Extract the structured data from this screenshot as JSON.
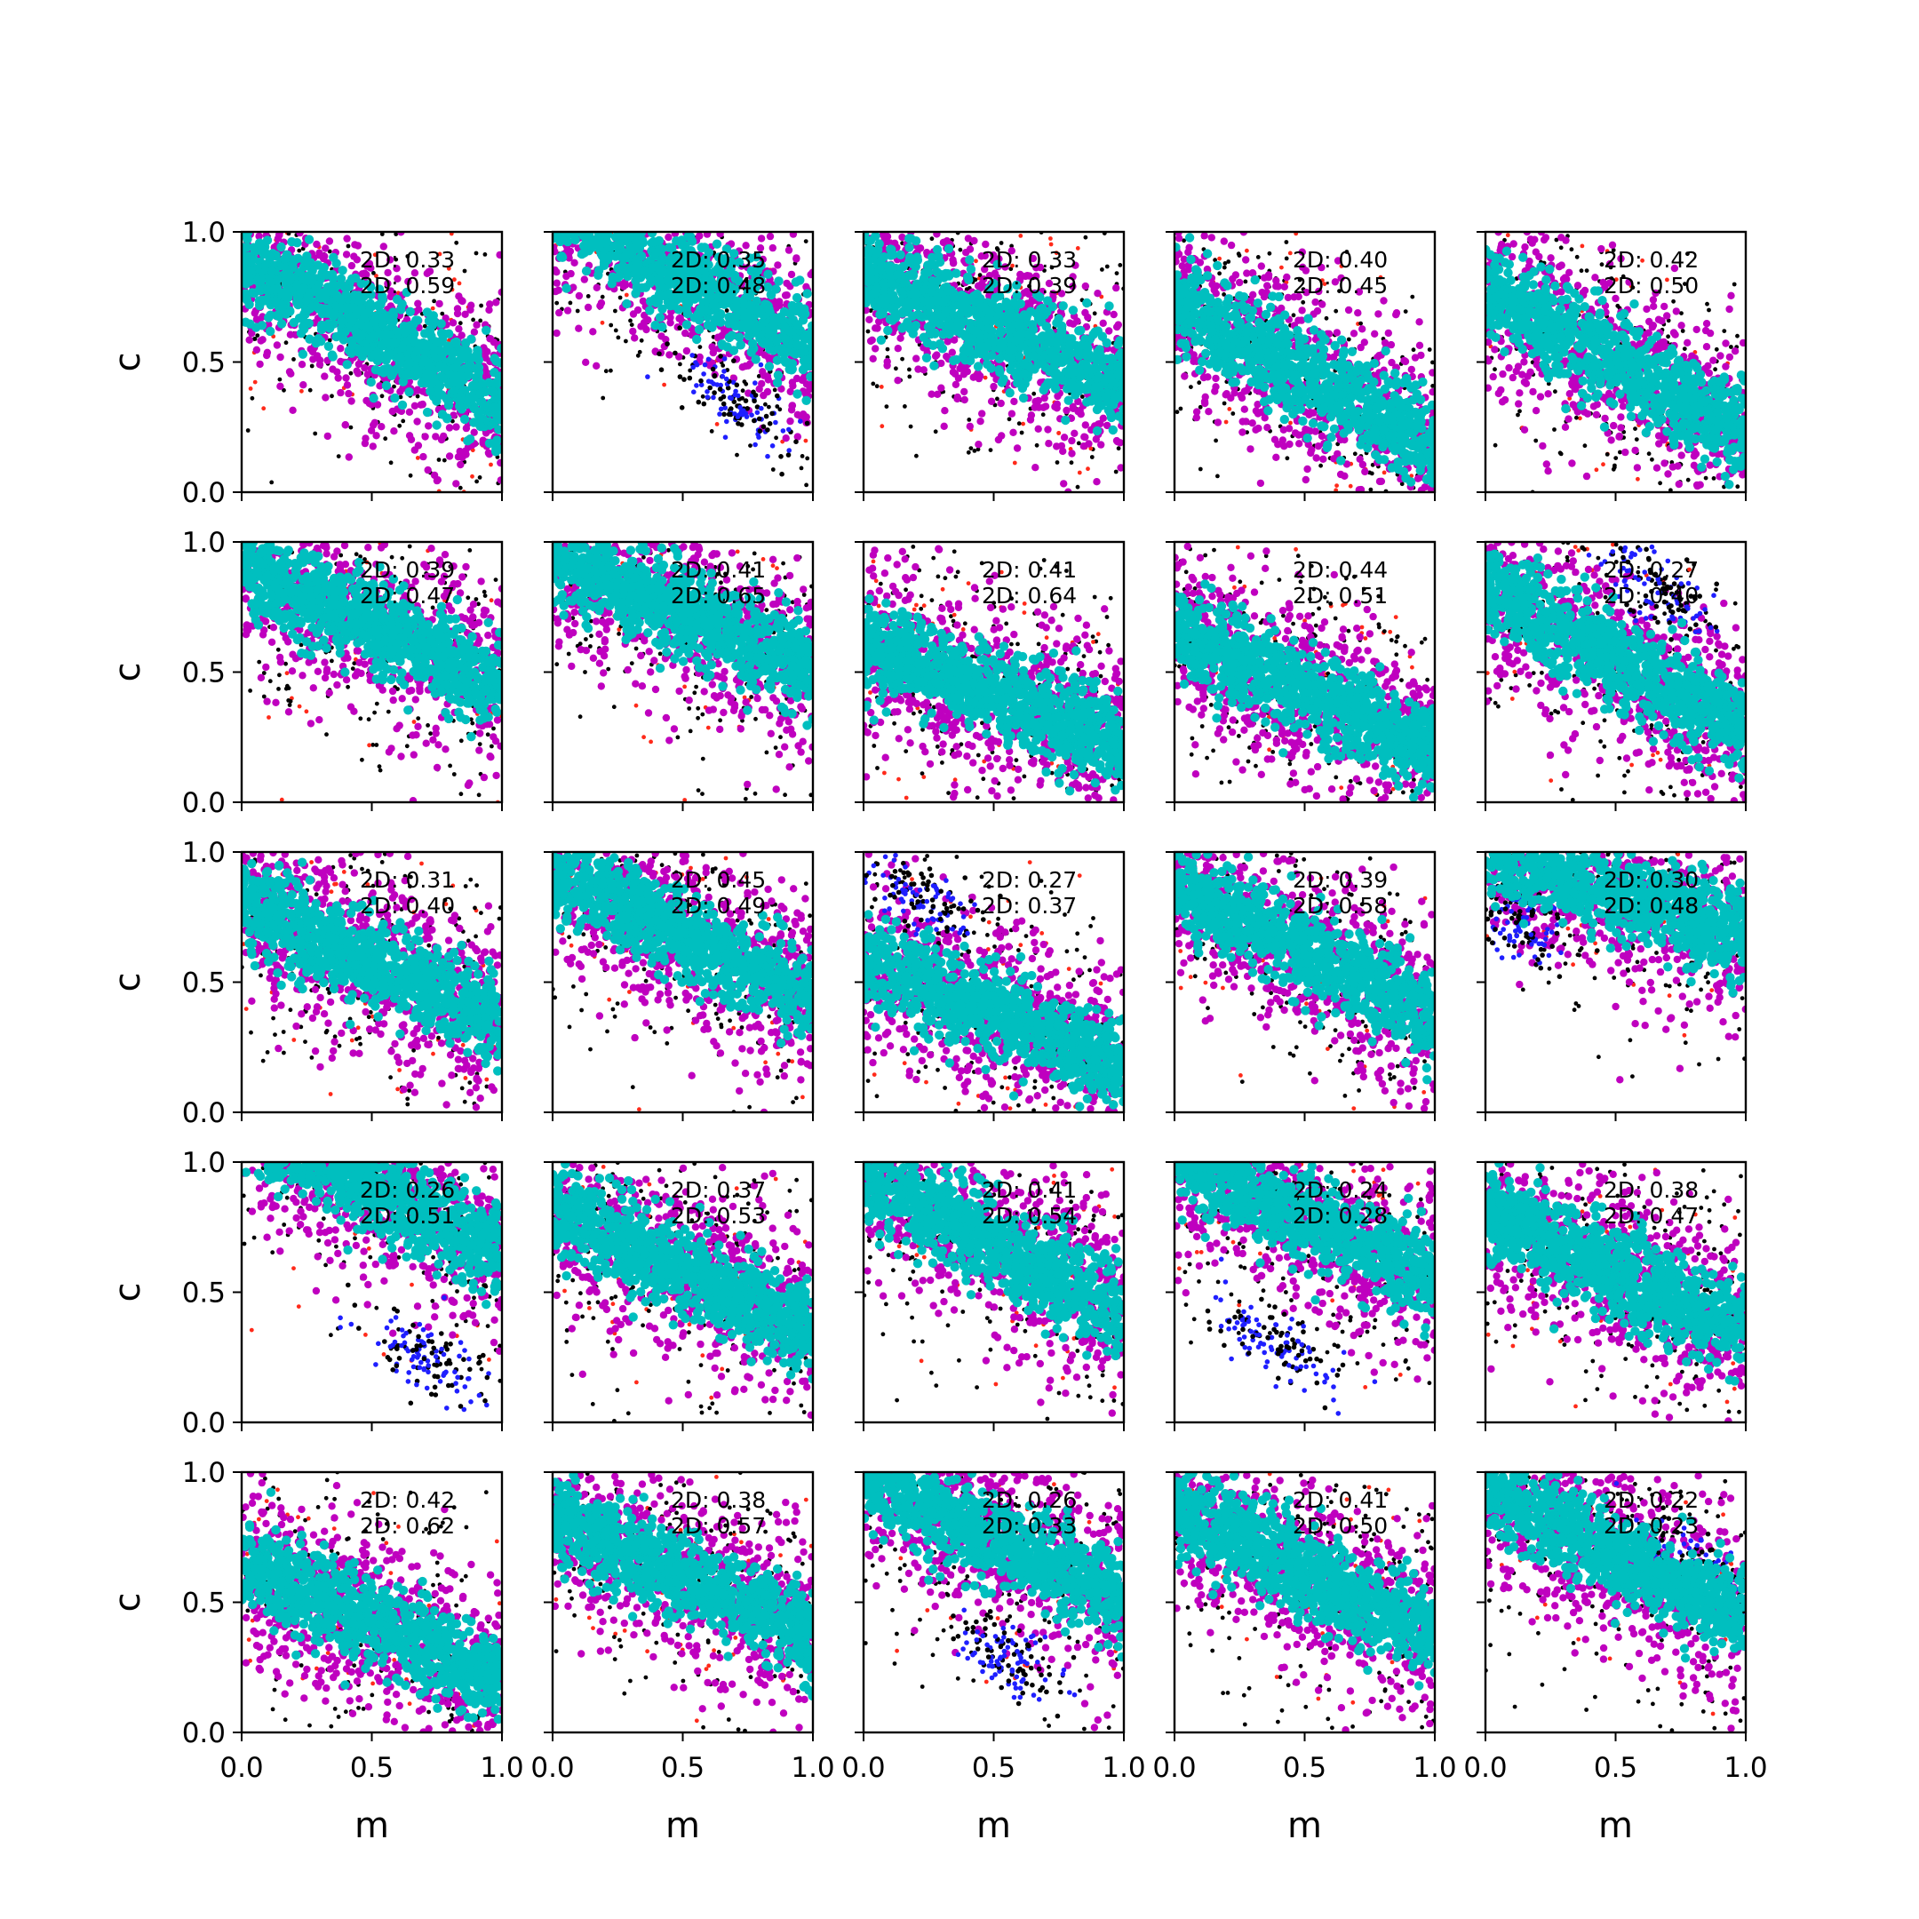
{
  "figure": {
    "type": "scatter",
    "rows": 5,
    "cols": 5,
    "xlabel": "m",
    "ylabel": "c",
    "xlim": [
      0.0,
      1.0
    ],
    "ylim": [
      0.0,
      1.0
    ],
    "x_tick_labels": [
      "0.0",
      "0.5",
      "1.0"
    ],
    "y_tick_labels": [
      "0.0",
      "0.5",
      "1.0"
    ],
    "point_colors": {
      "black": "#000000",
      "red": "#ff2a1a",
      "blue": "#1f1fff",
      "magenta": "#bf00bf",
      "cyan": "#00bfbf"
    }
  },
  "chart_data": [
    {
      "type": "scatter",
      "row": 1,
      "col": 1,
      "annotation": [
        "2D: 0.33",
        "2D: 0.59"
      ],
      "band_center": 0.62,
      "band_slope": -0.55,
      "blue_cluster": null
    },
    {
      "type": "scatter",
      "row": 1,
      "col": 2,
      "annotation": [
        "2D: 0.35",
        "2D: 0.48"
      ],
      "band_center": 0.83,
      "band_slope": -0.55,
      "blue_cluster": [
        0.72,
        0.35
      ]
    },
    {
      "type": "scatter",
      "row": 1,
      "col": 3,
      "annotation": [
        "2D: 0.33",
        "2D: 0.39"
      ],
      "band_center": 0.63,
      "band_slope": -0.45,
      "blue_cluster": null
    },
    {
      "type": "scatter",
      "row": 1,
      "col": 4,
      "annotation": [
        "2D: 0.40",
        "2D: 0.45"
      ],
      "band_center": 0.45,
      "band_slope": -0.55,
      "blue_cluster": null
    },
    {
      "type": "scatter",
      "row": 1,
      "col": 5,
      "annotation": [
        "2D: 0.42",
        "2D: 0.50"
      ],
      "band_center": 0.5,
      "band_slope": -0.55,
      "blue_cluster": null
    },
    {
      "type": "scatter",
      "row": 2,
      "col": 1,
      "annotation": [
        "2D: 0.39",
        "2D: 0.47"
      ],
      "band_center": 0.68,
      "band_slope": -0.45,
      "blue_cluster": null
    },
    {
      "type": "scatter",
      "row": 2,
      "col": 2,
      "annotation": [
        "2D: 0.41",
        "2D: 0.65"
      ],
      "band_center": 0.73,
      "band_slope": -0.45,
      "blue_cluster": null
    },
    {
      "type": "scatter",
      "row": 2,
      "col": 3,
      "annotation": [
        "2D: 0.41",
        "2D: 0.64"
      ],
      "band_center": 0.42,
      "band_slope": -0.4,
      "blue_cluster": null
    },
    {
      "type": "scatter",
      "row": 2,
      "col": 4,
      "annotation": [
        "2D: 0.44",
        "2D: 0.51"
      ],
      "band_center": 0.43,
      "band_slope": -0.45,
      "blue_cluster": null
    },
    {
      "type": "scatter",
      "row": 2,
      "col": 5,
      "annotation": [
        "2D: 0.27",
        "2D: 0.40"
      ],
      "band_center": 0.55,
      "band_slope": -0.55,
      "blue_cluster": [
        0.65,
        0.82
      ]
    },
    {
      "type": "scatter",
      "row": 3,
      "col": 1,
      "annotation": [
        "2D: 0.31",
        "2D: 0.40"
      ],
      "band_center": 0.58,
      "band_slope": -0.45,
      "blue_cluster": null
    },
    {
      "type": "scatter",
      "row": 3,
      "col": 2,
      "annotation": [
        "2D: 0.45",
        "2D: 0.49"
      ],
      "band_center": 0.68,
      "band_slope": -0.5,
      "blue_cluster": null
    },
    {
      "type": "scatter",
      "row": 3,
      "col": 3,
      "annotation": [
        "2D: 0.27",
        "2D: 0.37"
      ],
      "band_center": 0.38,
      "band_slope": -0.4,
      "blue_cluster": [
        0.22,
        0.82
      ]
    },
    {
      "type": "scatter",
      "row": 3,
      "col": 4,
      "annotation": [
        "2D: 0.39",
        "2D: 0.58"
      ],
      "band_center": 0.62,
      "band_slope": -0.5,
      "blue_cluster": null
    },
    {
      "type": "scatter",
      "row": 3,
      "col": 5,
      "annotation": [
        "2D: 0.30",
        "2D: 0.48"
      ],
      "band_center": 0.85,
      "band_slope": -0.35,
      "blue_cluster": [
        0.12,
        0.72
      ]
    },
    {
      "type": "scatter",
      "row": 4,
      "col": 1,
      "annotation": [
        "2D: 0.26",
        "2D: 0.51"
      ],
      "band_center": 0.9,
      "band_slope": -0.5,
      "blue_cluster": [
        0.7,
        0.25
      ]
    },
    {
      "type": "scatter",
      "row": 4,
      "col": 2,
      "annotation": [
        "2D: 0.37",
        "2D: 0.53"
      ],
      "band_center": 0.58,
      "band_slope": -0.45,
      "blue_cluster": null
    },
    {
      "type": "scatter",
      "row": 4,
      "col": 3,
      "annotation": [
        "2D: 0.41",
        "2D: 0.54"
      ],
      "band_center": 0.68,
      "band_slope": -0.5,
      "blue_cluster": null
    },
    {
      "type": "scatter",
      "row": 4,
      "col": 4,
      "annotation": [
        "2D: 0.24",
        "2D: 0.28"
      ],
      "band_center": 0.78,
      "band_slope": -0.5,
      "blue_cluster": [
        0.4,
        0.3
      ]
    },
    {
      "type": "scatter",
      "row": 4,
      "col": 5,
      "annotation": [
        "2D: 0.38",
        "2D: 0.47"
      ],
      "band_center": 0.58,
      "band_slope": -0.45,
      "blue_cluster": null
    },
    {
      "type": "scatter",
      "row": 5,
      "col": 1,
      "annotation": [
        "2D: 0.42",
        "2D: 0.62"
      ],
      "band_center": 0.42,
      "band_slope": -0.45,
      "blue_cluster": null
    },
    {
      "type": "scatter",
      "row": 5,
      "col": 2,
      "annotation": [
        "2D: 0.38",
        "2D: 0.57"
      ],
      "band_center": 0.6,
      "band_slope": -0.45,
      "blue_cluster": null
    },
    {
      "type": "scatter",
      "row": 5,
      "col": 3,
      "annotation": [
        "2D: 0.26",
        "2D: 0.33"
      ],
      "band_center": 0.75,
      "band_slope": -0.45,
      "blue_cluster": [
        0.55,
        0.3
      ]
    },
    {
      "type": "scatter",
      "row": 5,
      "col": 4,
      "annotation": [
        "2D: 0.41",
        "2D: 0.50"
      ],
      "band_center": 0.62,
      "band_slope": -0.5,
      "blue_cluster": null
    },
    {
      "type": "scatter",
      "row": 5,
      "col": 5,
      "annotation": [
        "2D: 0.22",
        "2D: 0.23"
      ],
      "band_center": 0.68,
      "band_slope": -0.5,
      "blue_cluster": [
        0.85,
        0.62
      ]
    }
  ]
}
